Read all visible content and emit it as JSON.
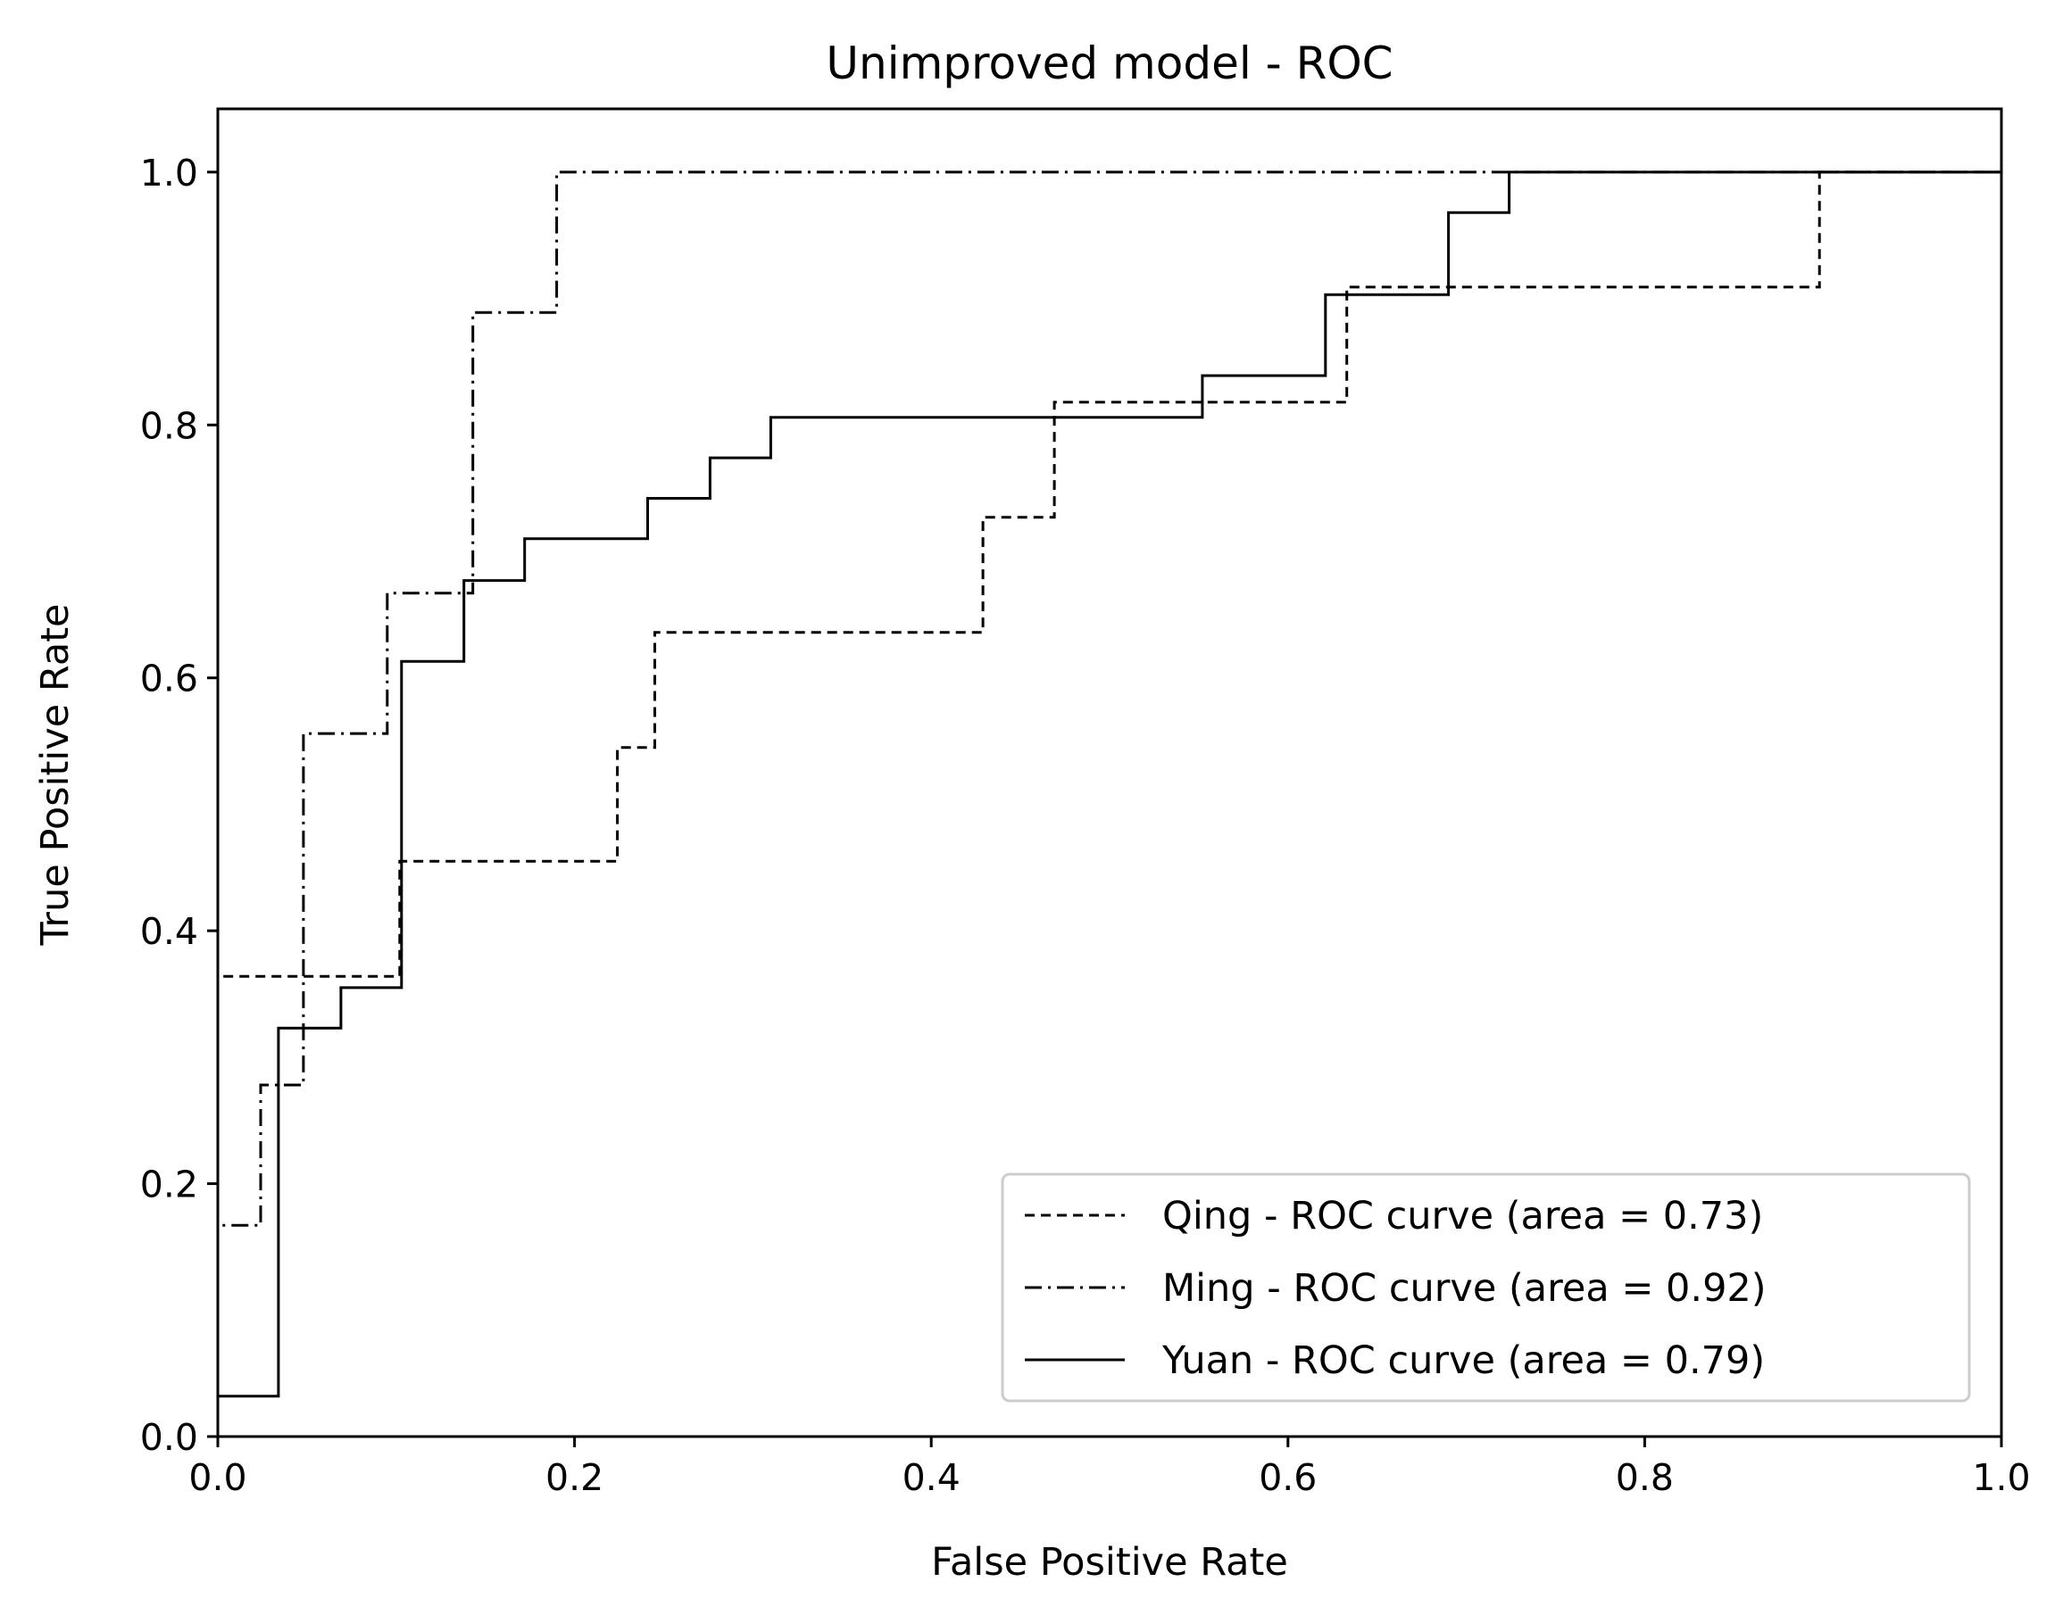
{
  "chart_data": {
    "type": "line",
    "title": "Unimproved model - ROC",
    "xlabel": "False Positive Rate",
    "ylabel": "True Positive Rate",
    "xlim": [
      0.0,
      1.0
    ],
    "ylim": [
      0.0,
      1.05
    ],
    "xticks": [
      "0.0",
      "0.2",
      "0.4",
      "0.6",
      "0.8",
      "1.0"
    ],
    "yticks": [
      "0.0",
      "0.2",
      "0.4",
      "0.6",
      "0.8",
      "1.0"
    ],
    "grid": false,
    "legend_position": "lower right",
    "step": true,
    "series": [
      {
        "name": "Qing - ROC curve (area = 0.73)",
        "linestyle": "dashed",
        "color": "#000000",
        "x": [
          0.0,
          0.0,
          0.102,
          0.102,
          0.224,
          0.224,
          0.245,
          0.245,
          0.429,
          0.429,
          0.469,
          0.469,
          0.633,
          0.633,
          0.898,
          0.898,
          1.0
        ],
        "y": [
          0.0,
          0.364,
          0.364,
          0.455,
          0.455,
          0.545,
          0.545,
          0.636,
          0.636,
          0.727,
          0.727,
          0.818,
          0.818,
          0.909,
          0.909,
          1.0,
          1.0
        ]
      },
      {
        "name": "Ming - ROC curve (area = 0.92)",
        "linestyle": "dashdot",
        "color": "#000000",
        "x": [
          0.0,
          0.0,
          0.024,
          0.024,
          0.048,
          0.048,
          0.095,
          0.095,
          0.143,
          0.143,
          0.19,
          0.19,
          1.0
        ],
        "y": [
          0.0,
          0.167,
          0.167,
          0.278,
          0.278,
          0.556,
          0.556,
          0.667,
          0.667,
          0.889,
          0.889,
          1.0,
          1.0
        ]
      },
      {
        "name": "Yuan - ROC curve (area = 0.79)",
        "linestyle": "solid",
        "color": "#000000",
        "x": [
          0.0,
          0.0,
          0.034,
          0.034,
          0.069,
          0.069,
          0.103,
          0.103,
          0.138,
          0.138,
          0.172,
          0.172,
          0.241,
          0.241,
          0.276,
          0.276,
          0.31,
          0.31,
          0.552,
          0.552,
          0.621,
          0.621,
          0.69,
          0.69,
          0.724,
          0.724,
          1.0
        ],
        "y": [
          0.0,
          0.032,
          0.032,
          0.323,
          0.323,
          0.355,
          0.355,
          0.613,
          0.613,
          0.677,
          0.677,
          0.71,
          0.71,
          0.742,
          0.742,
          0.774,
          0.774,
          0.806,
          0.806,
          0.839,
          0.839,
          0.903,
          0.903,
          0.968,
          0.968,
          1.0,
          1.0
        ]
      }
    ]
  }
}
